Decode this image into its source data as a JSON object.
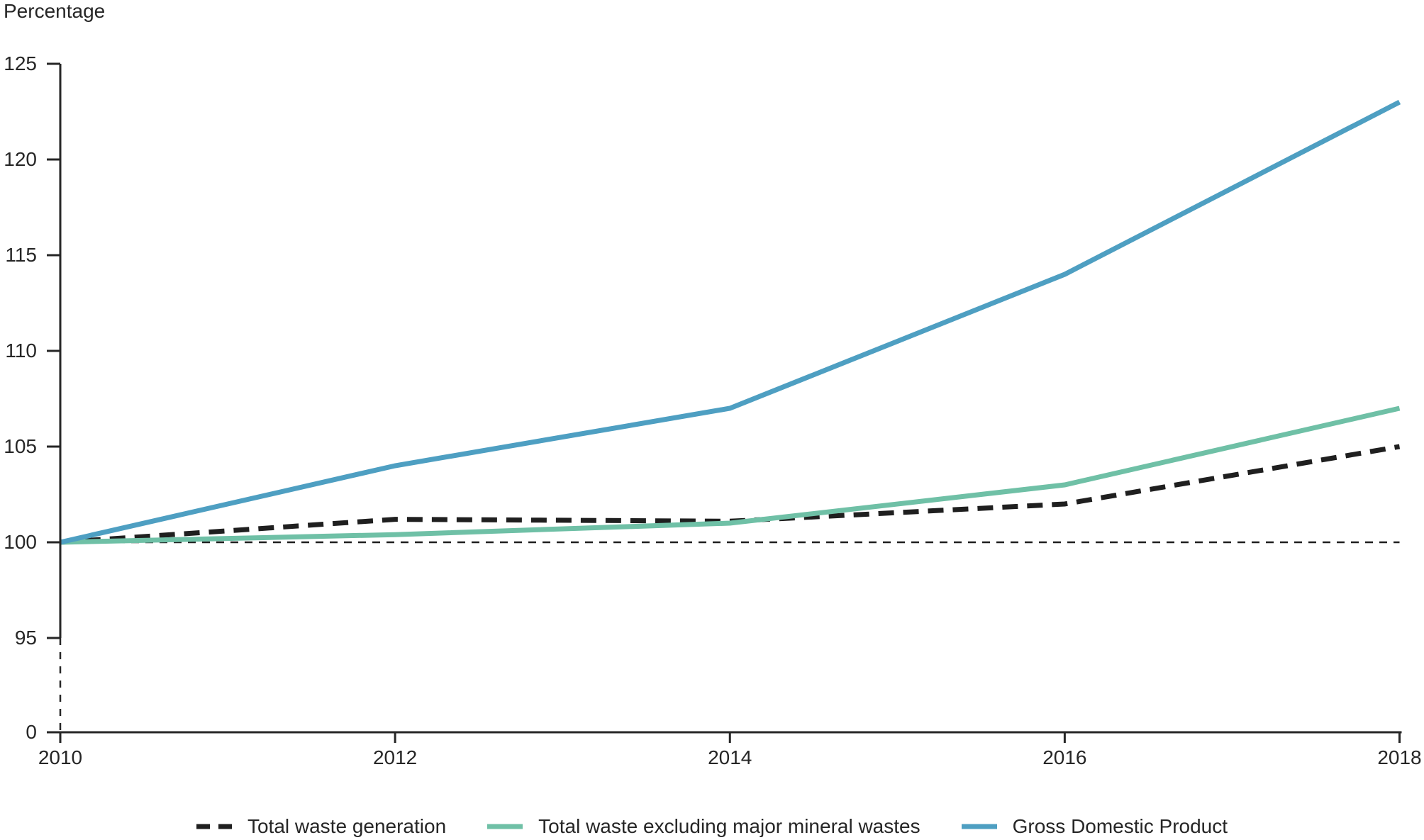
{
  "chart_data": {
    "type": "line",
    "title": "",
    "ylabel": "Percentage",
    "xlabel": "",
    "x_values": [
      2010,
      2012,
      2014,
      2016,
      2018
    ],
    "x_tick_labels": [
      "2010",
      "2012",
      "2014",
      "2016",
      "2018"
    ],
    "y_ticks": [
      125,
      120,
      115,
      110,
      105,
      100,
      95
    ],
    "y_axis_break": true,
    "y_break_label": "0",
    "ylim": [
      95,
      125
    ],
    "index_base_note": "all series start at 100 in 2010",
    "grid": "off",
    "legend_position": "bottom",
    "reference_line": {
      "value": 100,
      "style": "dashed",
      "color": "#1f1f1f"
    },
    "series": [
      {
        "name": "Total waste generation",
        "color": "#1f1f1f",
        "line_style": "dashed",
        "values": [
          100,
          101.2,
          101.1,
          102,
          105
        ]
      },
      {
        "name": "Total waste excluding major mineral wastes",
        "color": "#6FC0A6",
        "line_style": "solid",
        "values": [
          100,
          100.4,
          101,
          103,
          107
        ]
      },
      {
        "name": "Gross Domestic Product",
        "color": "#4E9FC2",
        "line_style": "solid",
        "values": [
          100,
          104,
          107,
          114,
          123
        ]
      }
    ],
    "axis_color": "#262626"
  }
}
